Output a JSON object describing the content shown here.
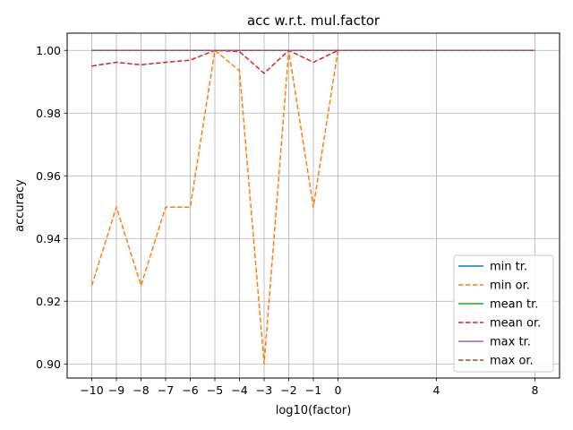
{
  "chart_data": {
    "type": "line",
    "title": "acc w.r.t. mul.factor",
    "xlabel": "log10(factor)",
    "ylabel": "accuracy",
    "xlim": [
      -11,
      9
    ],
    "ylim": [
      0.8955,
      1.0055
    ],
    "xticks": [
      -10,
      -9,
      -8,
      -7,
      -6,
      -5,
      -4,
      -3,
      -2,
      -1,
      0,
      4,
      8
    ],
    "xtick_labels": [
      "−10",
      "−9",
      "−8",
      "−7",
      "−6",
      "−5",
      "−4",
      "−3",
      "−2",
      "−1",
      "0",
      "4",
      "8"
    ],
    "yticks": [
      0.9,
      0.92,
      0.94,
      0.96,
      0.98,
      1.0
    ],
    "ytick_labels": [
      "0.90",
      "0.92",
      "0.94",
      "0.96",
      "0.98",
      "1.00"
    ],
    "grid": true,
    "legend_position": "lower-right",
    "x": [
      -10,
      -9,
      -8,
      -7,
      -6,
      -5,
      -4,
      -3,
      -2,
      -1,
      0,
      4,
      8
    ],
    "series": [
      {
        "name": "min tr.",
        "color": "#1f77b4",
        "style": "solid",
        "values": [
          1.0,
          1.0,
          1.0,
          1.0,
          1.0,
          1.0,
          1.0,
          1.0,
          1.0,
          1.0,
          1.0,
          1.0,
          1.0
        ]
      },
      {
        "name": "min or.",
        "color": "#ff7f0e",
        "style": "dashed",
        "values": [
          0.925,
          0.95,
          0.925,
          0.95,
          0.95,
          1.0,
          0.9935,
          0.9,
          1.0,
          0.95,
          1.0,
          1.0,
          1.0
        ]
      },
      {
        "name": "mean tr.",
        "color": "#2ca02c",
        "style": "solid",
        "values": [
          1.0,
          1.0,
          1.0,
          1.0,
          1.0,
          1.0,
          1.0,
          1.0,
          1.0,
          1.0,
          1.0,
          1.0,
          1.0
        ]
      },
      {
        "name": "mean or.",
        "color": "#d62728",
        "style": "dashed",
        "values": [
          0.995,
          0.9962,
          0.9954,
          0.9962,
          0.9969,
          1.0,
          0.9996,
          0.9927,
          1.0,
          0.9962,
          1.0,
          1.0,
          1.0
        ]
      },
      {
        "name": "max tr.",
        "color": "#9467bd",
        "style": "solid",
        "values": [
          1.0,
          1.0,
          1.0,
          1.0,
          1.0,
          1.0,
          1.0,
          1.0,
          1.0,
          1.0,
          1.0,
          1.0,
          1.0
        ]
      },
      {
        "name": "max or.",
        "color": "#8c564b",
        "style": "dashed",
        "values": [
          1.0,
          1.0,
          1.0,
          1.0,
          1.0,
          1.0,
          1.0,
          1.0,
          1.0,
          1.0,
          1.0,
          1.0,
          1.0
        ]
      }
    ]
  }
}
